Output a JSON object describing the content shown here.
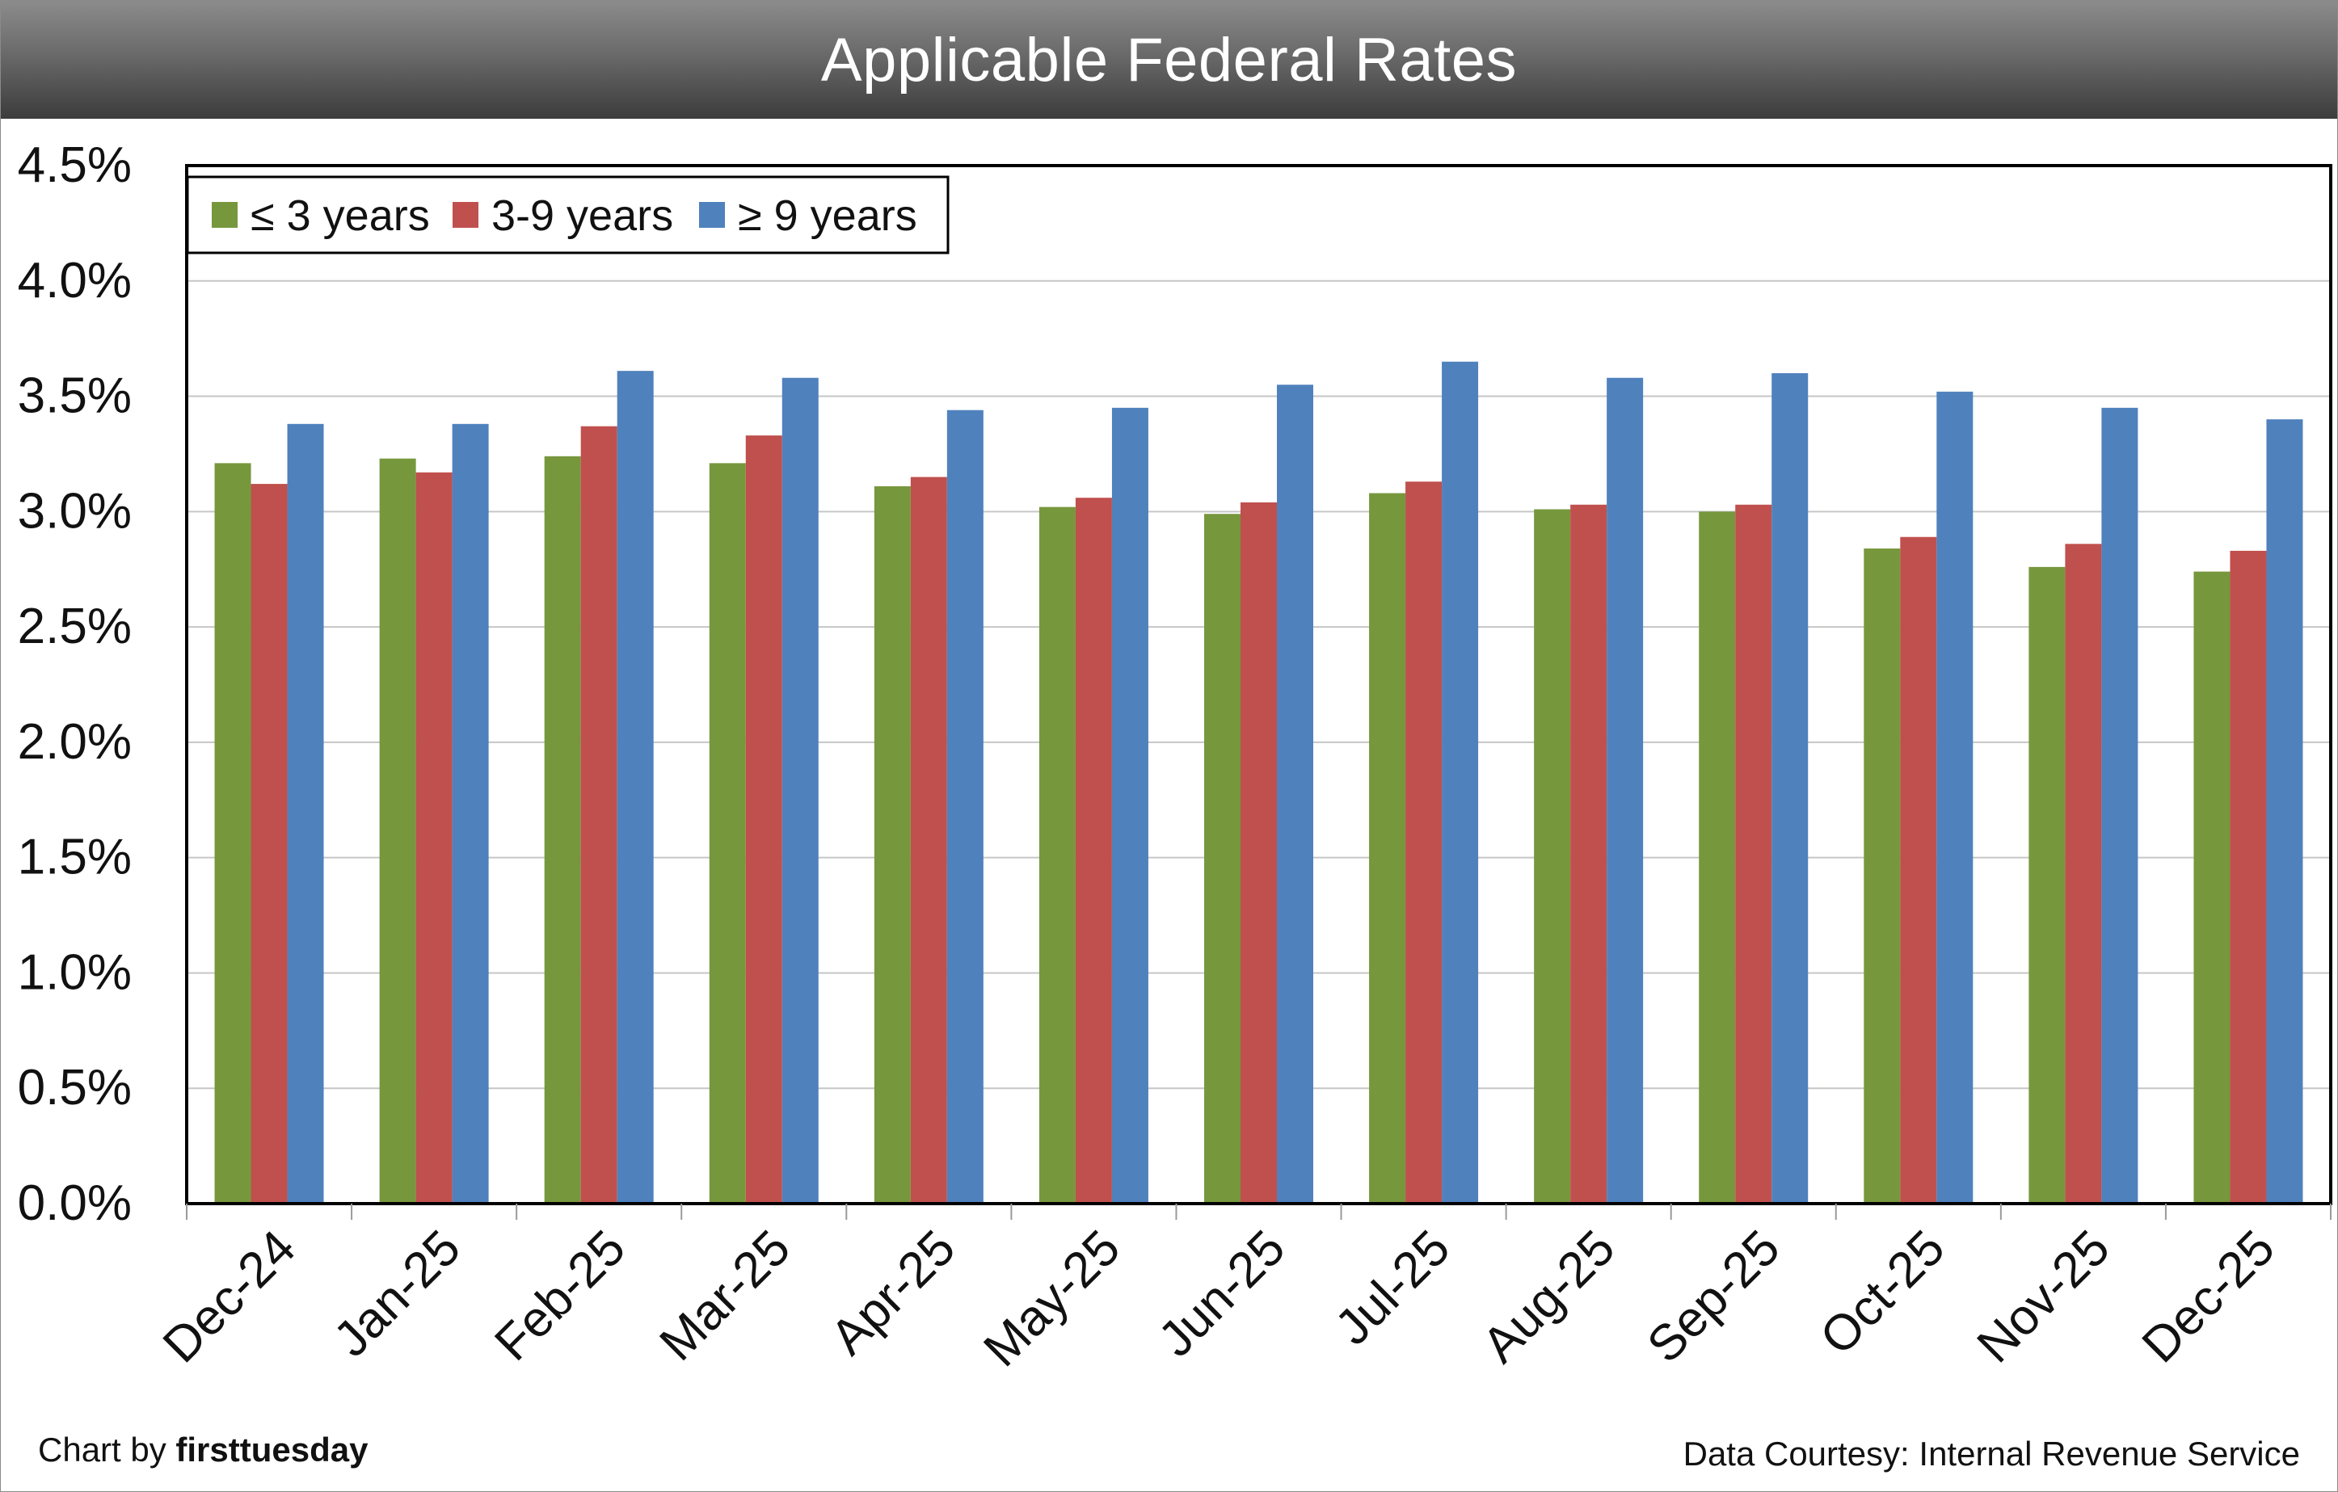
{
  "header": {
    "title": "Applicable Federal Rates"
  },
  "footer": {
    "credit_prefix": "Chart by",
    "credit_brand": "firsttuesday",
    "source": "Data Courtesy: Internal Revenue Service"
  },
  "chart_data": {
    "type": "bar",
    "title": "Applicable Federal Rates",
    "xlabel": "",
    "ylabel": "",
    "ylim": [
      0,
      4.5
    ],
    "y_ticks": [
      "0.0%",
      "0.5%",
      "1.0%",
      "1.5%",
      "2.0%",
      "2.5%",
      "3.0%",
      "3.5%",
      "4.0%",
      "4.5%"
    ],
    "grid": true,
    "legend_position": "top-left",
    "categories": [
      "Dec-24",
      "Jan-25",
      "Feb-25",
      "Mar-25",
      "Apr-25",
      "May-25",
      "Jun-25",
      "Jul-25",
      "Aug-25",
      "Sep-25",
      "Oct-25",
      "Nov-25",
      "Dec-25"
    ],
    "series": [
      {
        "name": "≤ 3 years",
        "color": "#77973d",
        "values": [
          3.21,
          3.23,
          3.24,
          3.21,
          3.11,
          3.02,
          2.99,
          3.08,
          3.01,
          3.0,
          2.84,
          2.76,
          2.74
        ]
      },
      {
        "name": "3-9 years",
        "color": "#c0504d",
        "values": [
          3.12,
          3.17,
          3.37,
          3.33,
          3.15,
          3.06,
          3.04,
          3.13,
          3.03,
          3.03,
          2.89,
          2.86,
          2.83
        ]
      },
      {
        "name": "≥  9 years",
        "color": "#4f81bd",
        "values": [
          3.38,
          3.38,
          3.61,
          3.58,
          3.44,
          3.45,
          3.55,
          3.65,
          3.58,
          3.6,
          3.52,
          3.45,
          3.4
        ]
      }
    ]
  }
}
